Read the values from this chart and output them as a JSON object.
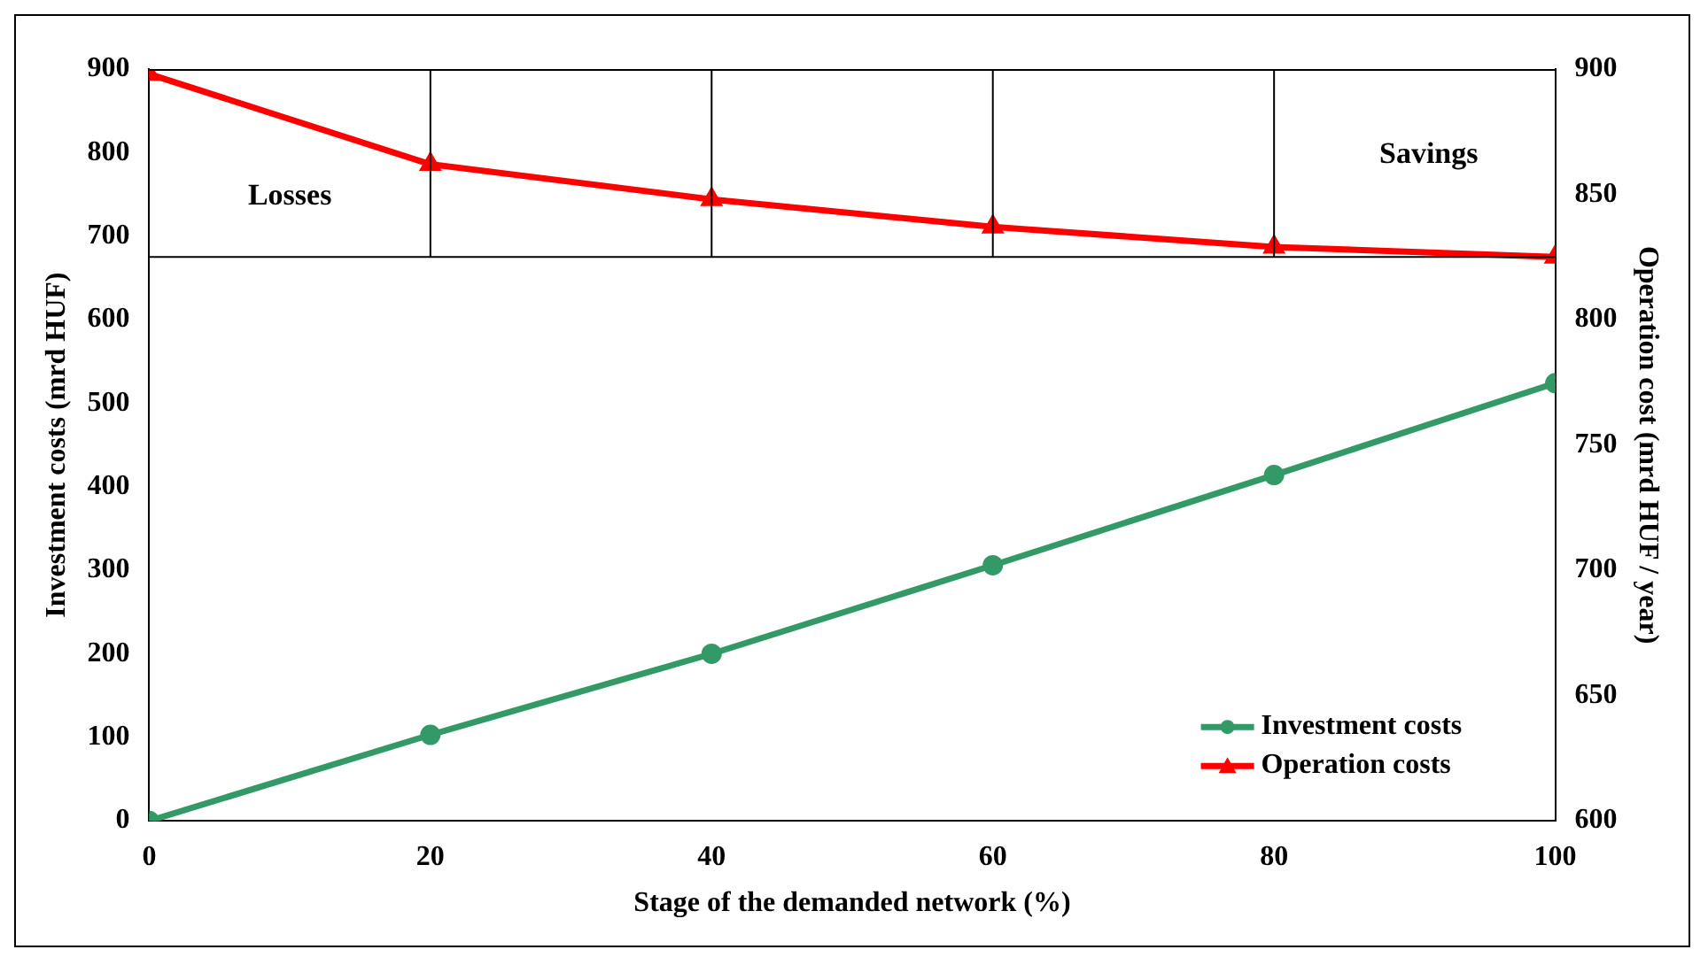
{
  "chart_data": {
    "type": "line",
    "xlabel": "Stage of the demanded network (%)",
    "ylabel": "Investment costs (mrd HUF)",
    "y2label": "Operation cost (mrd HUF / year)",
    "x": [
      0,
      20,
      40,
      60,
      80,
      100
    ],
    "series": [
      {
        "name": "Investment costs",
        "color": "#339966",
        "values": [
          0,
          103,
          200,
          306,
          414,
          524
        ],
        "marker": "circle"
      },
      {
        "name": "Operation costs",
        "color": "#ff0000",
        "values": [
          898,
          862,
          848,
          837,
          829,
          825
        ],
        "axis": "y2",
        "marker": "triangle"
      }
    ],
    "xlim": [
      0,
      100
    ],
    "xticks": [
      0,
      20,
      40,
      60,
      80,
      100
    ],
    "ylim": [
      0,
      900
    ],
    "yticks": [
      0,
      100,
      200,
      300,
      400,
      500,
      600,
      700,
      800,
      900
    ],
    "y2lim": [
      600,
      900
    ],
    "y2ticks": [
      600,
      650,
      700,
      750,
      800,
      850,
      900
    ],
    "ref_lines": [
      {
        "axis": "y2",
        "value": 825,
        "color": "#000000"
      },
      {
        "axis": "x",
        "value": 20,
        "color": "#000000"
      },
      {
        "axis": "x",
        "value": 40,
        "color": "#000000"
      },
      {
        "axis": "x",
        "value": 60,
        "color": "#000000"
      },
      {
        "axis": "x",
        "value": 80,
        "color": "#000000"
      }
    ],
    "annotations": [
      "Losses",
      "Savings"
    ],
    "grid": false,
    "legend": "bottom right",
    "line_style": "solid"
  }
}
